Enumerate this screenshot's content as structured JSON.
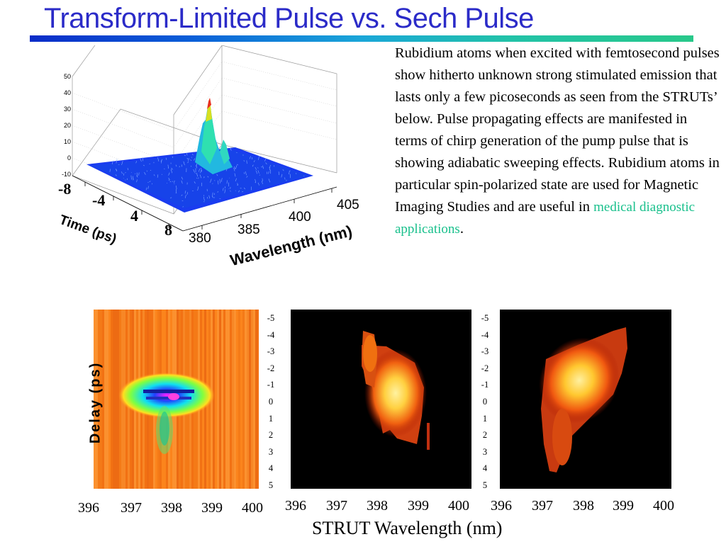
{
  "title": "Transform-Limited Pulse vs. Sech Pulse",
  "paragraph": {
    "text": "Rubidium atoms when excited with femtosecond pulses show hitherto unknown strong stimulated emission that lasts only a few picoseconds as seen from the STRUTs’ below. Pulse propagating effects are manifested in terms of chirp generation of the pump pulse that is showing adiabatic sweeping effects. Rubidium atoms in particular spin-polarized state are used for Magnetic Imaging Studies and are useful in",
    "link": "medical diagnostic applications",
    "end": "."
  },
  "surface_plot": {
    "z_ticks": [
      "50",
      "40",
      "30",
      "20",
      "10",
      "0",
      "-10"
    ],
    "time_ticks": [
      "-8",
      "-4",
      "4",
      "8"
    ],
    "time_label": "Time (ps)",
    "wl_ticks": [
      "380",
      "385",
      "400",
      "405"
    ],
    "wl_label": "Wavelength (nm)"
  },
  "struts": {
    "ylabel": "Delay (ps)",
    "delay_ticks": [
      "-5",
      "-4",
      "-3",
      "-2",
      "-1",
      "0",
      "1",
      "2",
      "3",
      "4",
      "5"
    ],
    "wl_ticks": [
      "396",
      "397",
      "398",
      "399",
      "400"
    ],
    "xlabel": "STRUT Wavelength (nm)"
  },
  "colors": {
    "title": "#2b2bc8",
    "link": "#19c08c"
  }
}
